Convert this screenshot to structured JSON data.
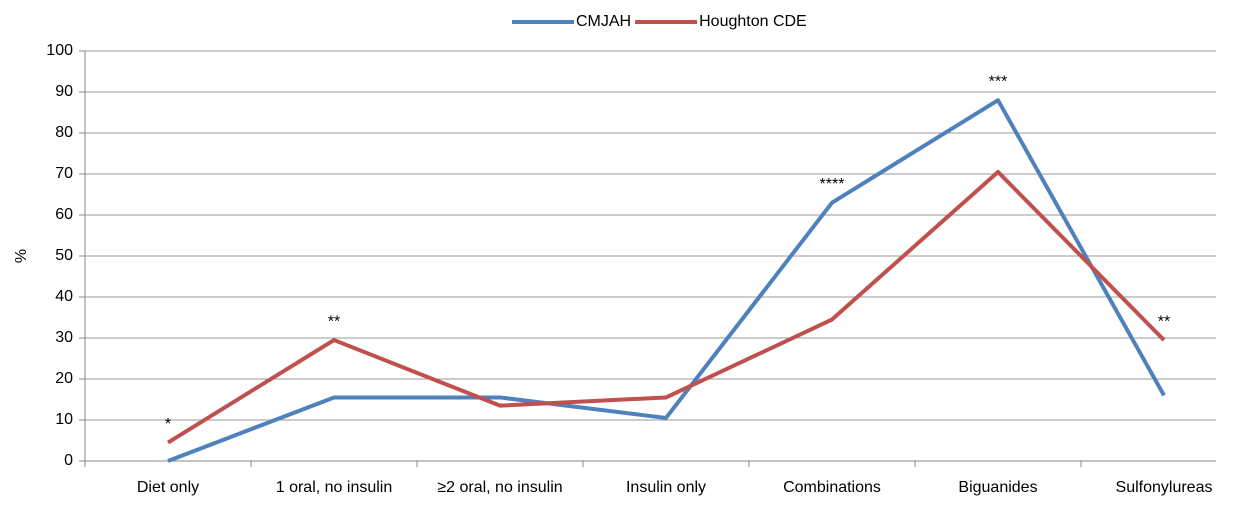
{
  "chart_data": {
    "type": "line",
    "y_label": "%",
    "categories": [
      "Diet only",
      "1 oral, no insulin",
      "≥2 oral, no insulin",
      "Insulin only",
      "Combinations",
      "Biguanides",
      "Sulfonylureas"
    ],
    "series": [
      {
        "name": "CMJAH",
        "color": "#4f81bd",
        "values": [
          0,
          15.5,
          15.5,
          10.5,
          63,
          88,
          16
        ]
      },
      {
        "name": "Houghton CDE",
        "color": "#c0504d",
        "values": [
          4.5,
          29.5,
          13.5,
          15.5,
          34.5,
          70.5,
          29.5
        ]
      }
    ],
    "annotations": [
      {
        "text": "*",
        "category": "Diet only"
      },
      {
        "text": "**",
        "category": "1 oral, no insulin"
      },
      {
        "text": "****",
        "category": "Combinations"
      },
      {
        "text": "***",
        "category": "Biguanides"
      },
      {
        "text": "**",
        "category": "Sulfonylureas"
      }
    ],
    "ylim": [
      0,
      100
    ],
    "yticks": [
      0,
      10,
      20,
      30,
      40,
      50,
      60,
      70,
      80,
      90,
      100
    ],
    "grid": true,
    "legend": "top"
  }
}
